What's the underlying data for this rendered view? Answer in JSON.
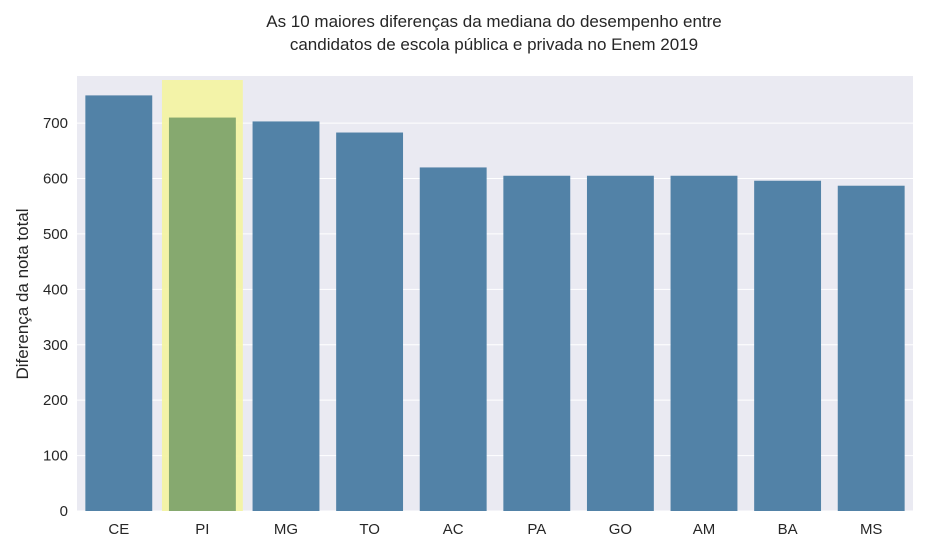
{
  "chart_data": {
    "type": "bar",
    "title_lines": [
      "As 10 maiores diferenças da mediana do desempenho entre",
      "candidatos de escola pública e privada no Enem 2019"
    ],
    "xlabel": "",
    "ylabel": "Diferença da nota total",
    "categories": [
      "CE",
      "PI",
      "MG",
      "TO",
      "AC",
      "PA",
      "GO",
      "AM",
      "BA",
      "MS"
    ],
    "values": [
      750,
      710,
      703,
      683,
      620,
      605,
      605,
      605,
      596,
      587
    ],
    "ylim": [
      0,
      785
    ],
    "yticks": [
      0,
      100,
      200,
      300,
      400,
      500,
      600,
      700
    ],
    "grid": true,
    "highlight": {
      "category": "PI",
      "bar_color": "#86A96F",
      "band_color": "#F3F3A3"
    },
    "colors": {
      "bar": "#5282A7",
      "plot_background": "#EAEAF2",
      "grid": "#FFFFFF"
    }
  }
}
